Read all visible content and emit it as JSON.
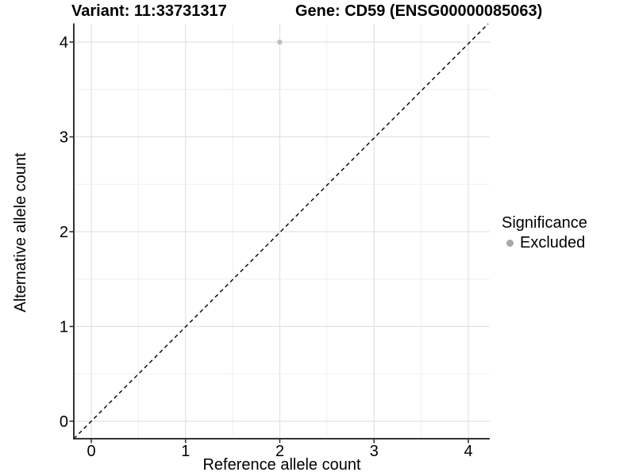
{
  "figure": {
    "title_left": "Variant: 11:33731317",
    "title_right": "Gene: CD59 (ENSG00000085063)"
  },
  "chart_data": {
    "type": "scatter",
    "title_left": "Variant: 11:33731317",
    "title_right": "Gene: CD59 (ENSG00000085063)",
    "xlabel": "Reference allele count",
    "ylabel": "Alternative allele count",
    "xticks": [
      0,
      1,
      2,
      3,
      4
    ],
    "yticks": [
      0,
      1,
      2,
      3,
      4
    ],
    "xlim": [
      -0.19,
      4.27
    ],
    "ylim": [
      -0.18,
      4.19
    ],
    "grid": "major and minor gridlines, light grey on white panel",
    "legend": {
      "title": "Significance",
      "position": "right",
      "items": [
        {
          "label": "Excluded",
          "color": "#a8a8a8"
        }
      ]
    },
    "series": [
      {
        "name": "Excluded",
        "color": "#bfbfbf",
        "points": [
          [
            2,
            4
          ]
        ]
      }
    ],
    "reference_line": {
      "kind": "identity y = x",
      "style": "dashed",
      "color": "#000000"
    },
    "colors": {
      "grid_major": "#e2e2e2",
      "grid_minor": "#efefef",
      "axis_line": "#333333",
      "tick_label": "#000000",
      "background": "#ffffff"
    }
  }
}
